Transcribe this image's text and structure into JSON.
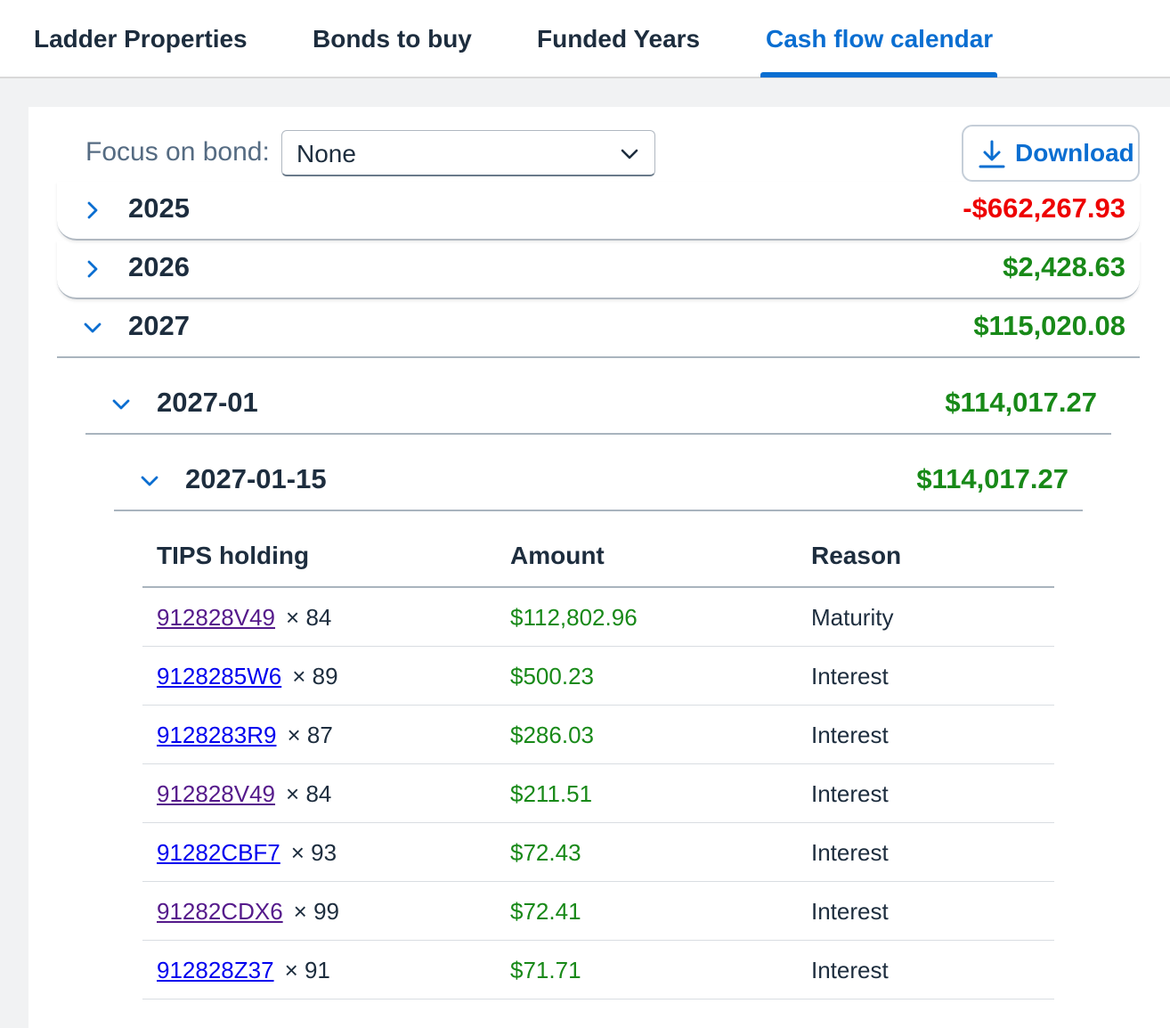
{
  "tabs": [
    {
      "label": "Ladder Properties"
    },
    {
      "label": "Bonds to buy"
    },
    {
      "label": "Funded Years"
    },
    {
      "label": "Cash flow calendar"
    }
  ],
  "active_tab": "Cash flow calendar",
  "focus": {
    "label": "Focus on bond:",
    "selected": "None"
  },
  "download": {
    "label": "Download"
  },
  "years": [
    {
      "label": "2025",
      "amount": "-$662,267.93"
    },
    {
      "label": "2026",
      "amount": "$2,428.63"
    },
    {
      "label": "2027",
      "amount": "$115,020.08"
    }
  ],
  "month": {
    "label": "2027-01",
    "amount": "$114,017.27"
  },
  "day": {
    "label": "2027-01-15",
    "amount": "$114,017.27"
  },
  "table": {
    "headers": [
      "TIPS holding",
      "Amount",
      "Reason"
    ],
    "rows": [
      {
        "cusip": "912828V49",
        "qty": "× 84",
        "amount": "$112,802.96",
        "reason": "Maturity"
      },
      {
        "cusip": "9128285W6",
        "qty": "× 89",
        "amount": "$500.23",
        "reason": "Interest"
      },
      {
        "cusip": "9128283R9",
        "qty": "× 87",
        "amount": "$286.03",
        "reason": "Interest"
      },
      {
        "cusip": "912828V49",
        "qty": "× 84",
        "amount": "$211.51",
        "reason": "Interest"
      },
      {
        "cusip": "91282CBF7",
        "qty": "× 93",
        "amount": "$72.43",
        "reason": "Interest"
      },
      {
        "cusip": "91282CDX6",
        "qty": "× 99",
        "amount": "$72.41",
        "reason": "Interest"
      },
      {
        "cusip": "912828Z37",
        "qty": "× 91",
        "amount": "$71.71",
        "reason": "Interest"
      }
    ]
  },
  "colors": {
    "accent": "#0a6ed1",
    "positive": "#188918",
    "negative": "#ee0000"
  }
}
